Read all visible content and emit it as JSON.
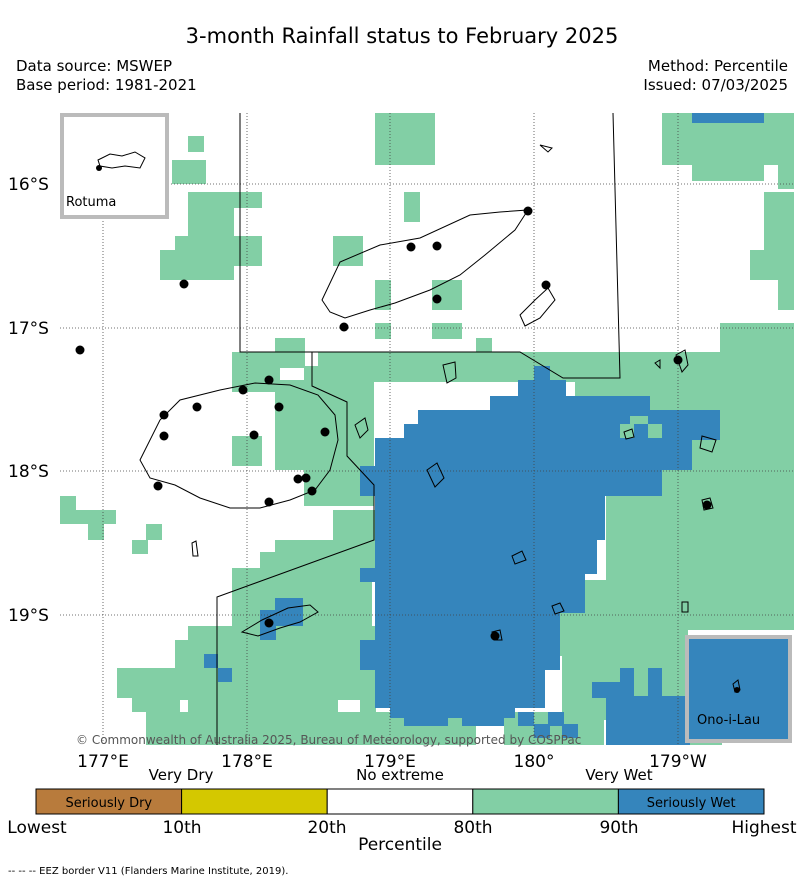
{
  "title": "3-month Rainfall status to February 2025",
  "meta": {
    "data_source": "Data source: MSWEP",
    "base_period": "Base period: 1981-2021",
    "method": "Method: Percentile",
    "issued": "Issued: 07/03/2025"
  },
  "map": {
    "lat_ticks": [
      "16°S",
      "17°S",
      "18°S",
      "19°S"
    ],
    "lon_ticks": [
      "177°E",
      "178°E",
      "179°E",
      "180°",
      "179°W"
    ],
    "inset_rotuma": "Rotuma",
    "inset_onoilau": "Ono-i-Lau",
    "copyright": "© Commonwealth of Australia 2025, Bureau of Meteorology, supported by COSPPac"
  },
  "legend": {
    "category_labels": [
      "Very Dry",
      "No extreme",
      "Very Wet"
    ],
    "boxes": [
      {
        "label": "Seriously Dry",
        "color": "#b87b3c"
      },
      {
        "label": "",
        "color": "#d4c800"
      },
      {
        "label": "",
        "color": "#ffffff"
      },
      {
        "label": "",
        "color": "#82cfa5"
      },
      {
        "label": "Seriously Wet",
        "color": "#3585bc"
      }
    ],
    "percentile_ticks": [
      "Lowest",
      "10th",
      "20th",
      "80th",
      "90th",
      "Highest"
    ],
    "axis_title": "Percentile"
  },
  "colors": {
    "very_wet": "#82cfa5",
    "seriously_wet": "#3585bc"
  },
  "footnote": "--  --  -- EEZ border V11 (Flanders Marine Institute, 2019)."
}
